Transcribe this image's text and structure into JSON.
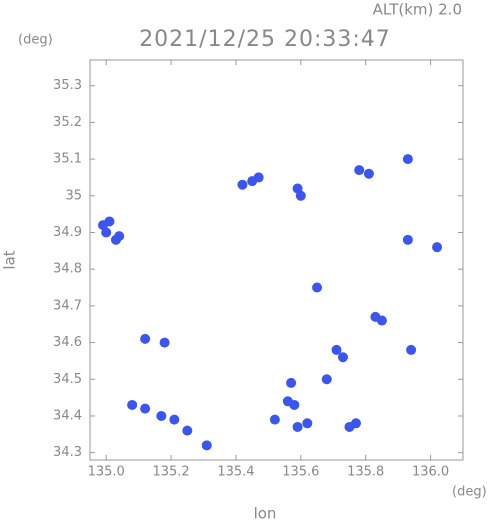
{
  "chart_data": {
    "type": "scatter",
    "title": "2021/12/25 20:33:47",
    "subtitle": "ALT(km) 2.0",
    "x_label": "lon",
    "y_label": "lat",
    "x_unit": "(deg)",
    "y_unit": "(deg)",
    "xlim": [
      134.95,
      136.1
    ],
    "ylim": [
      34.28,
      35.37
    ],
    "xticks": [
      {
        "value": 135.0,
        "label": "135.0"
      },
      135.2,
      135.4,
      135.6,
      135.8,
      {
        "value": 136.0,
        "label": "136.0"
      }
    ],
    "yticks": [
      34.3,
      34.4,
      34.5,
      34.6,
      34.7,
      34.8,
      34.9,
      35.0,
      35.1,
      35.2,
      35.3
    ],
    "color": "#3a55f0",
    "x": [
      134.99,
      135.0,
      135.01,
      135.03,
      135.04,
      135.45,
      135.47,
      135.42,
      135.59,
      135.6,
      135.78,
      135.81,
      135.93,
      135.93,
      136.02,
      135.12,
      135.18,
      135.83,
      135.85,
      135.73,
      135.71,
      135.65,
      135.57,
      135.56,
      135.58,
      135.52,
      135.59,
      135.62,
      135.75,
      135.77,
      135.08,
      135.12,
      135.17,
      135.21,
      135.25,
      135.31,
      135.94,
      135.68
    ],
    "y": [
      34.92,
      34.9,
      34.93,
      34.88,
      34.89,
      35.04,
      35.05,
      35.03,
      35.02,
      35.0,
      35.07,
      35.06,
      35.1,
      34.88,
      34.86,
      34.61,
      34.6,
      34.67,
      34.66,
      34.56,
      34.58,
      34.75,
      34.49,
      34.44,
      34.43,
      34.39,
      34.37,
      34.38,
      34.37,
      34.38,
      34.43,
      34.42,
      34.4,
      34.39,
      34.36,
      34.32,
      34.58,
      34.5
    ]
  }
}
